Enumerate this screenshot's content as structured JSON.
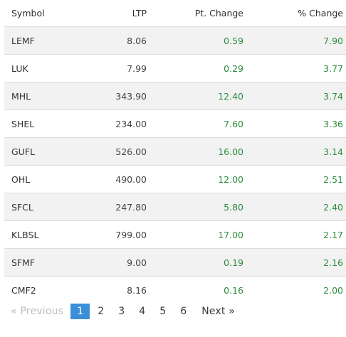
{
  "table": {
    "headers": {
      "symbol": "Symbol",
      "ltp": "LTP",
      "pt_change": "Pt. Change",
      "pct_change": "% Change"
    },
    "rows": [
      {
        "symbol": "LEMF",
        "ltp": "8.06",
        "pt_change": "0.59",
        "pct_change": "7.90"
      },
      {
        "symbol": "LUK",
        "ltp": "7.99",
        "pt_change": "0.29",
        "pct_change": "3.77"
      },
      {
        "symbol": "MHL",
        "ltp": "343.90",
        "pt_change": "12.40",
        "pct_change": "3.74"
      },
      {
        "symbol": "SHEL",
        "ltp": "234.00",
        "pt_change": "7.60",
        "pct_change": "3.36"
      },
      {
        "symbol": "GUFL",
        "ltp": "526.00",
        "pt_change": "16.00",
        "pct_change": "3.14"
      },
      {
        "symbol": "OHL",
        "ltp": "490.00",
        "pt_change": "12.00",
        "pct_change": "2.51"
      },
      {
        "symbol": "SFCL",
        "ltp": "247.80",
        "pt_change": "5.80",
        "pct_change": "2.40"
      },
      {
        "symbol": "KLBSL",
        "ltp": "799.00",
        "pt_change": "17.00",
        "pct_change": "2.17"
      },
      {
        "symbol": "SFMF",
        "ltp": "9.00",
        "pt_change": "0.19",
        "pct_change": "2.16"
      },
      {
        "symbol": "CMF2",
        "ltp": "8.16",
        "pt_change": "0.16",
        "pct_change": "2.00"
      }
    ]
  },
  "pagination": {
    "previous": "« Previous",
    "next": "Next »",
    "pages": [
      "1",
      "2",
      "3",
      "4",
      "5",
      "6"
    ],
    "current_page": "1"
  },
  "colors": {
    "positive": "#2e8b3e",
    "active_page": "#3a8fd8"
  }
}
